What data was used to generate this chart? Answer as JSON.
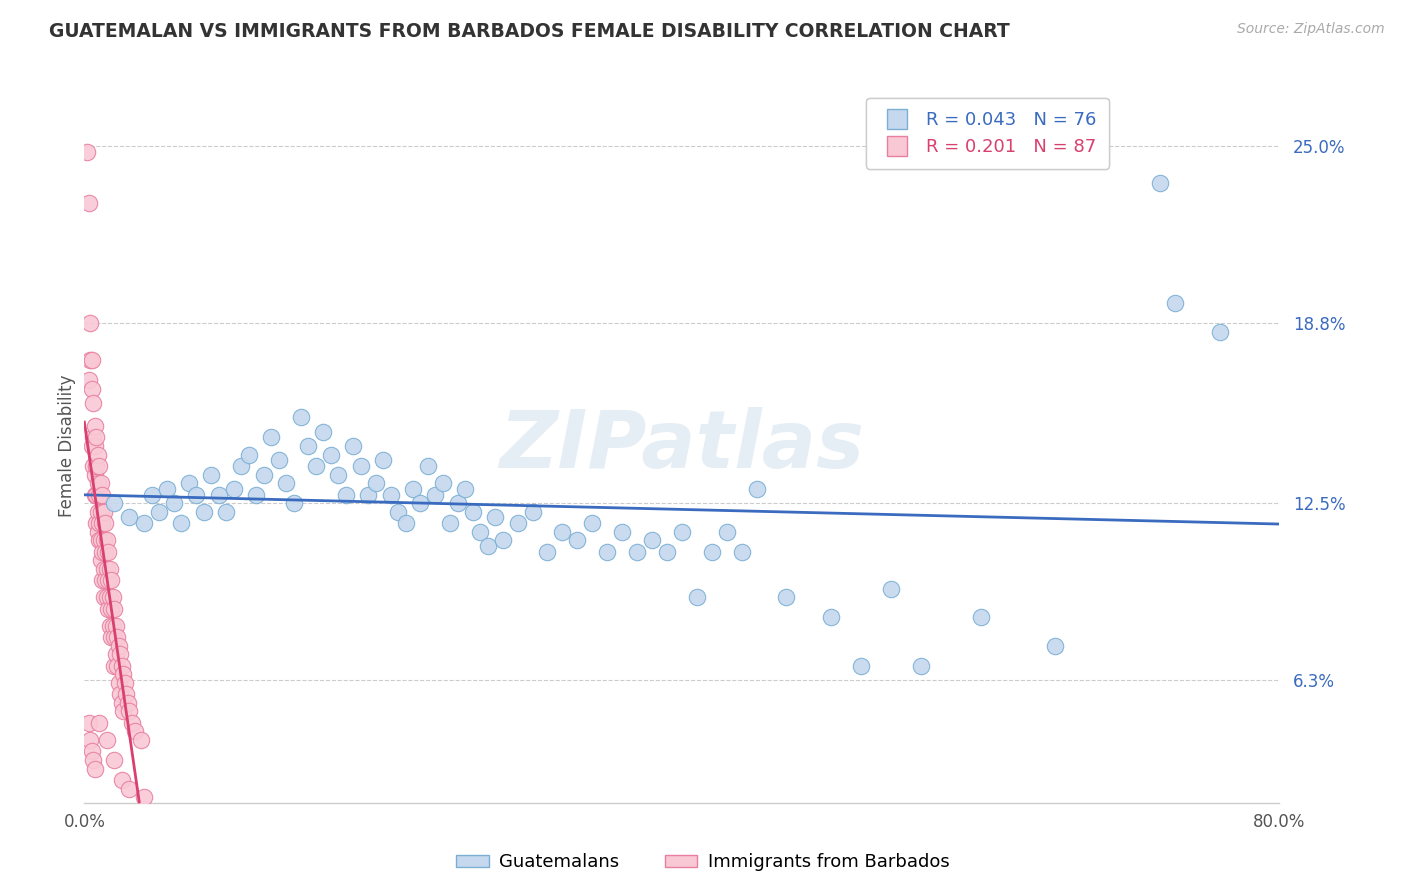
{
  "title": "GUATEMALAN VS IMMIGRANTS FROM BARBADOS FEMALE DISABILITY CORRELATION CHART",
  "source": "Source: ZipAtlas.com",
  "ylabel": "Female Disability",
  "yticks": [
    0.063,
    0.125,
    0.188,
    0.25
  ],
  "ytick_labels": [
    "6.3%",
    "12.5%",
    "18.8%",
    "25.0%"
  ],
  "xmin": 0.0,
  "xmax": 0.8,
  "ymin": 0.02,
  "ymax": 0.27,
  "blue_R": 0.043,
  "blue_N": 76,
  "pink_R": 0.201,
  "pink_N": 87,
  "blue_fill": "#c5d8ee",
  "blue_edge": "#7bafd4",
  "pink_fill": "#f9c8d5",
  "pink_edge": "#e87fa0",
  "blue_line_color": "#3a6bbf",
  "pink_line_color": "#d94070",
  "legend_label_blue": "Guatemalans",
  "legend_label_pink": "Immigrants from Barbados",
  "watermark": "ZIPatlas",
  "blue_points": [
    [
      0.02,
      0.125
    ],
    [
      0.03,
      0.12
    ],
    [
      0.04,
      0.118
    ],
    [
      0.045,
      0.128
    ],
    [
      0.05,
      0.122
    ],
    [
      0.055,
      0.13
    ],
    [
      0.06,
      0.125
    ],
    [
      0.065,
      0.118
    ],
    [
      0.07,
      0.132
    ],
    [
      0.075,
      0.128
    ],
    [
      0.08,
      0.122
    ],
    [
      0.085,
      0.135
    ],
    [
      0.09,
      0.128
    ],
    [
      0.095,
      0.122
    ],
    [
      0.1,
      0.13
    ],
    [
      0.105,
      0.138
    ],
    [
      0.11,
      0.142
    ],
    [
      0.115,
      0.128
    ],
    [
      0.12,
      0.135
    ],
    [
      0.125,
      0.148
    ],
    [
      0.13,
      0.14
    ],
    [
      0.135,
      0.132
    ],
    [
      0.14,
      0.125
    ],
    [
      0.145,
      0.155
    ],
    [
      0.15,
      0.145
    ],
    [
      0.155,
      0.138
    ],
    [
      0.16,
      0.15
    ],
    [
      0.165,
      0.142
    ],
    [
      0.17,
      0.135
    ],
    [
      0.175,
      0.128
    ],
    [
      0.18,
      0.145
    ],
    [
      0.185,
      0.138
    ],
    [
      0.19,
      0.128
    ],
    [
      0.195,
      0.132
    ],
    [
      0.2,
      0.14
    ],
    [
      0.205,
      0.128
    ],
    [
      0.21,
      0.122
    ],
    [
      0.215,
      0.118
    ],
    [
      0.22,
      0.13
    ],
    [
      0.225,
      0.125
    ],
    [
      0.23,
      0.138
    ],
    [
      0.235,
      0.128
    ],
    [
      0.24,
      0.132
    ],
    [
      0.245,
      0.118
    ],
    [
      0.25,
      0.125
    ],
    [
      0.255,
      0.13
    ],
    [
      0.26,
      0.122
    ],
    [
      0.265,
      0.115
    ],
    [
      0.27,
      0.11
    ],
    [
      0.275,
      0.12
    ],
    [
      0.28,
      0.112
    ],
    [
      0.29,
      0.118
    ],
    [
      0.3,
      0.122
    ],
    [
      0.31,
      0.108
    ],
    [
      0.32,
      0.115
    ],
    [
      0.33,
      0.112
    ],
    [
      0.34,
      0.118
    ],
    [
      0.35,
      0.108
    ],
    [
      0.36,
      0.115
    ],
    [
      0.37,
      0.108
    ],
    [
      0.38,
      0.112
    ],
    [
      0.39,
      0.108
    ],
    [
      0.4,
      0.115
    ],
    [
      0.41,
      0.092
    ],
    [
      0.42,
      0.108
    ],
    [
      0.43,
      0.115
    ],
    [
      0.44,
      0.108
    ],
    [
      0.45,
      0.13
    ],
    [
      0.47,
      0.092
    ],
    [
      0.5,
      0.085
    ],
    [
      0.52,
      0.068
    ],
    [
      0.54,
      0.095
    ],
    [
      0.56,
      0.068
    ],
    [
      0.6,
      0.085
    ],
    [
      0.65,
      0.075
    ],
    [
      0.72,
      0.237
    ],
    [
      0.73,
      0.195
    ],
    [
      0.76,
      0.185
    ]
  ],
  "pink_points": [
    [
      0.002,
      0.248
    ],
    [
      0.003,
      0.23
    ],
    [
      0.003,
      0.168
    ],
    [
      0.004,
      0.188
    ],
    [
      0.004,
      0.175
    ],
    [
      0.005,
      0.165
    ],
    [
      0.005,
      0.175
    ],
    [
      0.005,
      0.145
    ],
    [
      0.006,
      0.16
    ],
    [
      0.006,
      0.148
    ],
    [
      0.006,
      0.138
    ],
    [
      0.007,
      0.152
    ],
    [
      0.007,
      0.145
    ],
    [
      0.007,
      0.135
    ],
    [
      0.007,
      0.128
    ],
    [
      0.008,
      0.148
    ],
    [
      0.008,
      0.138
    ],
    [
      0.008,
      0.128
    ],
    [
      0.008,
      0.118
    ],
    [
      0.009,
      0.142
    ],
    [
      0.009,
      0.132
    ],
    [
      0.009,
      0.122
    ],
    [
      0.009,
      0.115
    ],
    [
      0.01,
      0.138
    ],
    [
      0.01,
      0.128
    ],
    [
      0.01,
      0.118
    ],
    [
      0.01,
      0.112
    ],
    [
      0.011,
      0.132
    ],
    [
      0.011,
      0.122
    ],
    [
      0.011,
      0.112
    ],
    [
      0.011,
      0.105
    ],
    [
      0.012,
      0.128
    ],
    [
      0.012,
      0.118
    ],
    [
      0.012,
      0.108
    ],
    [
      0.012,
      0.098
    ],
    [
      0.013,
      0.122
    ],
    [
      0.013,
      0.112
    ],
    [
      0.013,
      0.102
    ],
    [
      0.013,
      0.092
    ],
    [
      0.014,
      0.118
    ],
    [
      0.014,
      0.108
    ],
    [
      0.014,
      0.098
    ],
    [
      0.015,
      0.112
    ],
    [
      0.015,
      0.102
    ],
    [
      0.015,
      0.092
    ],
    [
      0.016,
      0.108
    ],
    [
      0.016,
      0.098
    ],
    [
      0.016,
      0.088
    ],
    [
      0.017,
      0.102
    ],
    [
      0.017,
      0.092
    ],
    [
      0.017,
      0.082
    ],
    [
      0.018,
      0.098
    ],
    [
      0.018,
      0.088
    ],
    [
      0.018,
      0.078
    ],
    [
      0.019,
      0.092
    ],
    [
      0.019,
      0.082
    ],
    [
      0.02,
      0.088
    ],
    [
      0.02,
      0.078
    ],
    [
      0.02,
      0.068
    ],
    [
      0.021,
      0.082
    ],
    [
      0.021,
      0.072
    ],
    [
      0.022,
      0.078
    ],
    [
      0.022,
      0.068
    ],
    [
      0.023,
      0.075
    ],
    [
      0.023,
      0.062
    ],
    [
      0.024,
      0.072
    ],
    [
      0.024,
      0.058
    ],
    [
      0.025,
      0.068
    ],
    [
      0.025,
      0.055
    ],
    [
      0.026,
      0.065
    ],
    [
      0.026,
      0.052
    ],
    [
      0.027,
      0.062
    ],
    [
      0.028,
      0.058
    ],
    [
      0.029,
      0.055
    ],
    [
      0.03,
      0.052
    ],
    [
      0.032,
      0.048
    ],
    [
      0.034,
      0.045
    ],
    [
      0.038,
      0.042
    ],
    [
      0.003,
      0.048
    ],
    [
      0.004,
      0.042
    ],
    [
      0.005,
      0.038
    ],
    [
      0.006,
      0.035
    ],
    [
      0.007,
      0.032
    ],
    [
      0.01,
      0.048
    ],
    [
      0.015,
      0.042
    ],
    [
      0.02,
      0.035
    ],
    [
      0.025,
      0.028
    ],
    [
      0.03,
      0.025
    ],
    [
      0.04,
      0.022
    ]
  ]
}
